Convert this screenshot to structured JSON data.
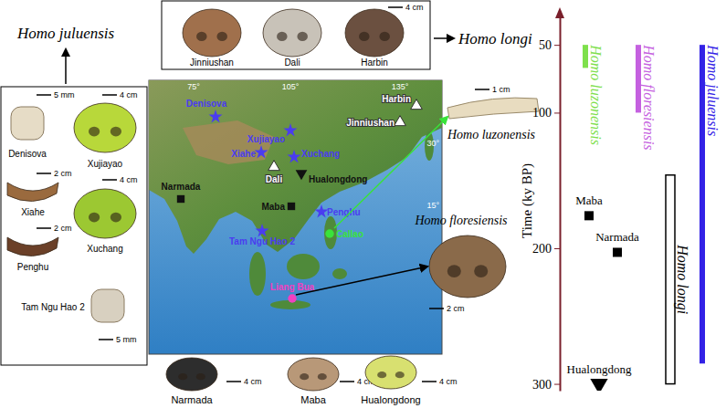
{
  "chart_data": {
    "type": "timeline",
    "y_label": "Time (ky BP)",
    "ylim": [
      25,
      305
    ],
    "yticks": [
      50,
      100,
      200,
      300
    ],
    "series": [
      {
        "name": "Homo luzonensis",
        "color": "#7ee04c",
        "line_style": "solid",
        "values": [
          50,
          67
        ]
      },
      {
        "name": "Homo floresiensis",
        "color": "#c561e0",
        "line_style": "solid",
        "values": [
          50,
          100
        ]
      },
      {
        "name": "Homo longi",
        "color": "#000000",
        "line_style": "outline",
        "values": [
          146,
          300
        ]
      },
      {
        "name": "Homo juluensis",
        "color": "#3322e6",
        "line_style": "solid",
        "values": [
          50,
          285
        ]
      }
    ],
    "points": [
      {
        "name": "Maba",
        "value": 176,
        "marker": "square",
        "color": "#000000"
      },
      {
        "name": "Narmada",
        "value": 203,
        "marker": "square",
        "color": "#000000"
      },
      {
        "name": "Hualongdong",
        "value": 300,
        "marker": "triangle-down",
        "color": "#000000"
      }
    ]
  },
  "figure": {
    "left_species": "Homo juluensis",
    "top_species": "Homo longi",
    "top_scale_bar": "4 cm",
    "top_panel": [
      {
        "label": "Jinniushan"
      },
      {
        "label": "Dali"
      },
      {
        "label": "Harbin"
      }
    ],
    "left_panel": [
      {
        "label": "Denisova",
        "scale_bar": "5 mm"
      },
      {
        "label": "Xujiayao",
        "scale_bar": "4 cm"
      },
      {
        "label": "Xiahe",
        "scale_bar": "2 cm"
      },
      {
        "label": "Xuchang",
        "scale_bar": "4 cm"
      },
      {
        "label": "Penghu",
        "scale_bar": "2 cm"
      },
      {
        "label": "Tam Ngu Hao 2",
        "scale_bar": "5 mm"
      }
    ],
    "side_specimens": [
      {
        "label": "Homo luzonensis",
        "scale_bar": "1 cm"
      },
      {
        "label": "Homo floresiensis",
        "scale_bar": "2 cm"
      }
    ],
    "bottom_panel": [
      {
        "label": "Narmada",
        "scale_bar": "4 cm"
      },
      {
        "label": "Maba",
        "scale_bar": "4 cm"
      },
      {
        "label": "Hualongdong",
        "scale_bar": "4 cm"
      }
    ],
    "map": {
      "longitudes": [
        "75°",
        "105°",
        "135°"
      ],
      "latitudes": [
        "30°",
        "15°"
      ],
      "sites": [
        {
          "label": "Denisova",
          "marker": "star",
          "color": "#4a3cf0"
        },
        {
          "label": "Xujiayao",
          "marker": "star",
          "color": "#4a3cf0"
        },
        {
          "label": "Xiahe",
          "marker": "star",
          "color": "#4a3cf0"
        },
        {
          "label": "Xuchang",
          "marker": "star",
          "color": "#4a3cf0"
        },
        {
          "label": "Penghu",
          "marker": "star",
          "color": "#4a3cf0"
        },
        {
          "label": "Tam Ngu Hao 2",
          "marker": "star",
          "color": "#4a3cf0"
        },
        {
          "label": "Harbin",
          "marker": "triangle",
          "color": "#ffffff"
        },
        {
          "label": "Jinniushan",
          "marker": "triangle",
          "color": "#ffffff"
        },
        {
          "label": "Dali",
          "marker": "triangle",
          "color": "#ffffff"
        },
        {
          "label": "Hualongdong",
          "marker": "triangle-down",
          "color": "#111111"
        },
        {
          "label": "Maba",
          "marker": "square",
          "color": "#111111"
        },
        {
          "label": "Narmada",
          "marker": "square",
          "color": "#111111"
        },
        {
          "label": "Callao",
          "marker": "circle",
          "color": "#39e33a"
        },
        {
          "label": "Liang Bua",
          "marker": "circle",
          "color": "#f040c0"
        }
      ]
    }
  }
}
